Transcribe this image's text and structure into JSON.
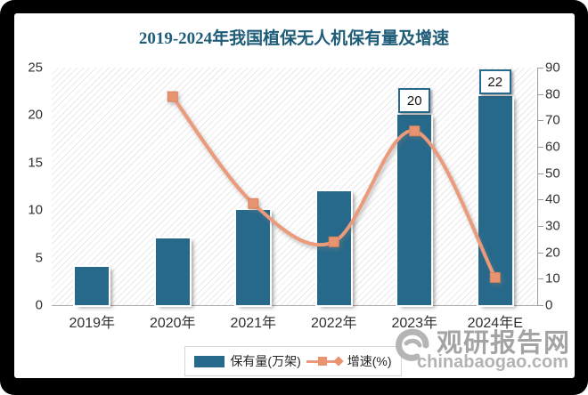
{
  "title": "2019-2024年我国植保无人机保有量及增速",
  "title_color": "#1e5c78",
  "chart_data": {
    "type": "bar",
    "subtype": "combo-bar-line-dual-axis",
    "title": "2019-2024年我国植保无人机保有量及增速",
    "categories": [
      "2019年",
      "2020年",
      "2021年",
      "2022年",
      "2023年",
      "2024年E"
    ],
    "series": [
      {
        "name": "保有量(万架)",
        "type": "bar",
        "axis": "left",
        "color": "#26698b",
        "values": [
          4,
          7,
          10,
          12,
          20,
          22
        ],
        "data_labels": [
          null,
          null,
          null,
          null,
          "20",
          "22"
        ]
      },
      {
        "name": "增速(%)",
        "type": "line",
        "axis": "right",
        "color": "#eb9b7b",
        "marker_color": "#e9946f",
        "marker_edge": "#d8815e",
        "values": [
          null,
          79,
          38.5,
          24,
          66,
          10.5
        ]
      }
    ],
    "left_axis": {
      "min": 0,
      "max": 25,
      "step": 5,
      "ticks": [
        "0",
        "5",
        "10",
        "15",
        "20",
        "25"
      ]
    },
    "right_axis": {
      "min": 0,
      "max": 90,
      "step": 10,
      "ticks": [
        "0",
        "10",
        "20",
        "30",
        "40",
        "50",
        "60",
        "70",
        "80",
        "90"
      ]
    },
    "grid": false,
    "plot_background": "diagonal-hatch",
    "legend_position": "bottom"
  },
  "legend": {
    "items": [
      {
        "label": "保有量(万架)",
        "swatch": "bar",
        "color": "#26698b"
      },
      {
        "label": "增速(%)",
        "swatch": "line",
        "color": "#eb9b7b"
      }
    ]
  },
  "watermark": {
    "name": "观研报告网",
    "domain": "chinabaogao.com",
    "color": "#a4a4a4"
  }
}
